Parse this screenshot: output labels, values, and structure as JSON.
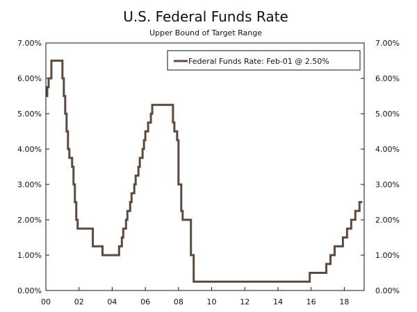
{
  "chart_data": {
    "type": "line",
    "title": "U.S. Federal Funds Rate",
    "subtitle": "Upper Bound of Target Range",
    "xlabel": "",
    "ylabel": "",
    "xlim": [
      2000.0,
      2019.2
    ],
    "ylim": [
      0,
      7
    ],
    "x_ticks": [
      {
        "value": 2000,
        "label": "00"
      },
      {
        "value": 2002,
        "label": "02"
      },
      {
        "value": 2004,
        "label": "04"
      },
      {
        "value": 2006,
        "label": "06"
      },
      {
        "value": 2008,
        "label": "08"
      },
      {
        "value": 2010,
        "label": "10"
      },
      {
        "value": 2012,
        "label": "12"
      },
      {
        "value": 2014,
        "label": "14"
      },
      {
        "value": 2016,
        "label": "16"
      },
      {
        "value": 2018,
        "label": "18"
      }
    ],
    "y_ticks": [
      {
        "value": 0,
        "label": "0.00%"
      },
      {
        "value": 1,
        "label": "1.00%"
      },
      {
        "value": 2,
        "label": "2.00%"
      },
      {
        "value": 3,
        "label": "3.00%"
      },
      {
        "value": 4,
        "label": "4.00%"
      },
      {
        "value": 5,
        "label": "5.00%"
      },
      {
        "value": 6,
        "label": "6.00%"
      },
      {
        "value": 7,
        "label": "7.00%"
      }
    ],
    "grid": false,
    "legend_position": "top-right",
    "legend_label": "Federal Funds Rate: Feb-01 @ 2.50%",
    "colors": {
      "line": "#5b4a40",
      "axis": "#111111"
    },
    "series": [
      {
        "name": "Federal Funds Rate: Feb-01 @ 2.50%",
        "points": [
          [
            "2000-01",
            5.5
          ],
          [
            "2000-02",
            5.75
          ],
          [
            "2000-03",
            6.0
          ],
          [
            "2000-05",
            6.5
          ],
          [
            "2001-01",
            6.0
          ],
          [
            "2001-02",
            5.5
          ],
          [
            "2001-03",
            5.0
          ],
          [
            "2001-04",
            4.5
          ],
          [
            "2001-05",
            4.0
          ],
          [
            "2001-06",
            3.75
          ],
          [
            "2001-08",
            3.5
          ],
          [
            "2001-09",
            3.0
          ],
          [
            "2001-10",
            2.5
          ],
          [
            "2001-11",
            2.0
          ],
          [
            "2001-12",
            1.75
          ],
          [
            "2002-11",
            1.25
          ],
          [
            "2003-06",
            1.0
          ],
          [
            "2004-06",
            1.25
          ],
          [
            "2004-08",
            1.5
          ],
          [
            "2004-09",
            1.75
          ],
          [
            "2004-11",
            2.0
          ],
          [
            "2004-12",
            2.25
          ],
          [
            "2005-02",
            2.5
          ],
          [
            "2005-03",
            2.75
          ],
          [
            "2005-05",
            3.0
          ],
          [
            "2005-06",
            3.25
          ],
          [
            "2005-08",
            3.5
          ],
          [
            "2005-09",
            3.75
          ],
          [
            "2005-11",
            4.0
          ],
          [
            "2005-12",
            4.25
          ],
          [
            "2006-01",
            4.5
          ],
          [
            "2006-03",
            4.75
          ],
          [
            "2006-05",
            5.0
          ],
          [
            "2006-06",
            5.25
          ],
          [
            "2007-09",
            4.75
          ],
          [
            "2007-10",
            4.5
          ],
          [
            "2007-12",
            4.25
          ],
          [
            "2008-01",
            3.0
          ],
          [
            "2008-03",
            2.25
          ],
          [
            "2008-04",
            2.0
          ],
          [
            "2008-10",
            1.0
          ],
          [
            "2008-12",
            0.25
          ],
          [
            "2015-12",
            0.5
          ],
          [
            "2016-12",
            0.75
          ],
          [
            "2017-03",
            1.0
          ],
          [
            "2017-06",
            1.25
          ],
          [
            "2017-12",
            1.5
          ],
          [
            "2018-03",
            1.75
          ],
          [
            "2018-06",
            2.0
          ],
          [
            "2018-09",
            2.25
          ],
          [
            "2018-12",
            2.5
          ],
          [
            "2019-02",
            2.5
          ]
        ]
      }
    ]
  }
}
